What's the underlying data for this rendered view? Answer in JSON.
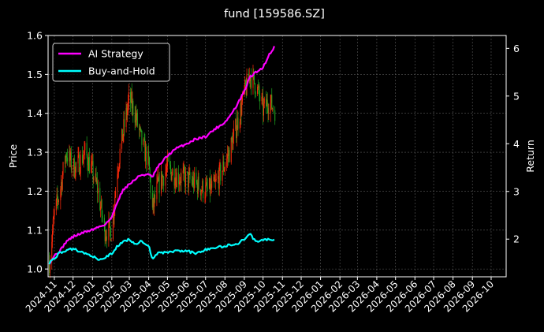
{
  "chart_data": {
    "type": "line",
    "title": "fund [159586.SZ]",
    "xlabel": "",
    "ylabel": "Price",
    "y2label": "Return",
    "grid": true,
    "legend_position": "top-left",
    "colors": {
      "background": "#000000",
      "text": "#ffffff",
      "grid": "#5a5a5a",
      "candle_up": "#ff2a0a",
      "candle_down": "#1fa81f",
      "ai_strategy": "#ff00ff",
      "buy_and_hold": "#00ffff"
    },
    "x_axis": {
      "range": [
        "2024-10-22",
        "2026-10-25"
      ],
      "tick_labels": [
        "2024-11",
        "2024-12",
        "2025-01",
        "2025-02",
        "2025-03",
        "2025-04",
        "2025-05",
        "2025-06",
        "2025-07",
        "2025-08",
        "2025-09",
        "2025-10",
        "2025-11",
        "2025-12",
        "2026-01",
        "2026-02",
        "2026-03",
        "2026-04",
        "2026-05",
        "2026-06",
        "2026-07",
        "2026-08",
        "2026-09",
        "2026-10"
      ]
    },
    "y_axis": {
      "range": [
        0.98,
        1.6
      ],
      "ticks": [
        1.0,
        1.1,
        1.2,
        1.3,
        1.4,
        1.5,
        1.6
      ],
      "tick_labels": [
        "1.0",
        "1.1",
        "1.2",
        "1.3",
        "1.4",
        "1.5",
        "1.6"
      ]
    },
    "y2_axis": {
      "range": [
        1.21,
        6.27
      ],
      "ticks": [
        2,
        3,
        4,
        5,
        6
      ],
      "tick_labels": [
        "2",
        "3",
        "4",
        "5",
        "6"
      ]
    },
    "candlestick_price": {
      "dates": [
        "2024-10-24",
        "2024-11-01",
        "2024-11-10",
        "2024-11-20",
        "2024-12-01",
        "2024-12-10",
        "2024-12-20",
        "2025-01-01",
        "2025-01-10",
        "2025-01-20",
        "2025-02-01",
        "2025-02-10",
        "2025-02-20",
        "2025-03-01",
        "2025-03-10",
        "2025-03-20",
        "2025-04-01",
        "2025-04-07",
        "2025-04-15",
        "2025-05-01",
        "2025-05-15",
        "2025-06-01",
        "2025-06-15",
        "2025-07-01",
        "2025-07-15",
        "2025-08-01",
        "2025-08-10",
        "2025-08-20",
        "2025-09-01",
        "2025-09-10",
        "2025-09-20",
        "2025-10-01",
        "2025-10-10",
        "2025-10-20"
      ],
      "values": [
        1.02,
        1.14,
        1.2,
        1.3,
        1.26,
        1.27,
        1.3,
        1.25,
        1.2,
        1.1,
        1.1,
        1.26,
        1.36,
        1.44,
        1.4,
        1.33,
        1.27,
        1.15,
        1.21,
        1.26,
        1.24,
        1.23,
        1.22,
        1.2,
        1.21,
        1.27,
        1.31,
        1.37,
        1.45,
        1.5,
        1.47,
        1.41,
        1.43,
        1.41
      ]
    },
    "series": [
      {
        "name": "AI Strategy",
        "axis": "right",
        "dates": [
          "2024-10-24",
          "2024-11-01",
          "2024-11-10",
          "2024-11-20",
          "2024-12-01",
          "2024-12-10",
          "2024-12-20",
          "2025-01-01",
          "2025-01-10",
          "2025-01-20",
          "2025-02-01",
          "2025-02-10",
          "2025-02-20",
          "2025-03-01",
          "2025-03-10",
          "2025-03-20",
          "2025-04-01",
          "2025-04-07",
          "2025-04-15",
          "2025-05-01",
          "2025-05-15",
          "2025-06-01",
          "2025-06-15",
          "2025-07-01",
          "2025-07-15",
          "2025-08-01",
          "2025-08-10",
          "2025-08-20",
          "2025-09-01",
          "2025-09-10",
          "2025-09-20",
          "2025-10-01",
          "2025-10-10",
          "2025-10-20"
        ],
        "values": [
          1.5,
          1.65,
          1.75,
          1.95,
          2.05,
          2.1,
          2.15,
          2.2,
          2.25,
          2.3,
          2.45,
          2.8,
          3.05,
          3.15,
          3.25,
          3.35,
          3.35,
          3.3,
          3.5,
          3.75,
          3.9,
          4.0,
          4.1,
          4.15,
          4.3,
          4.45,
          4.6,
          4.8,
          5.1,
          5.4,
          5.5,
          5.6,
          5.85,
          6.05
        ]
      },
      {
        "name": "Buy-and-Hold",
        "axis": "right",
        "dates": [
          "2024-10-24",
          "2024-11-01",
          "2024-11-10",
          "2024-11-20",
          "2024-12-01",
          "2024-12-10",
          "2024-12-20",
          "2025-01-01",
          "2025-01-10",
          "2025-01-20",
          "2025-02-01",
          "2025-02-10",
          "2025-02-20",
          "2025-03-01",
          "2025-03-10",
          "2025-03-20",
          "2025-04-01",
          "2025-04-07",
          "2025-04-15",
          "2025-05-01",
          "2025-05-15",
          "2025-06-01",
          "2025-06-15",
          "2025-07-01",
          "2025-07-15",
          "2025-08-01",
          "2025-08-10",
          "2025-08-20",
          "2025-09-01",
          "2025-09-10",
          "2025-09-20",
          "2025-10-01",
          "2025-10-10",
          "2025-10-20"
        ],
        "values": [
          1.5,
          1.6,
          1.72,
          1.75,
          1.8,
          1.75,
          1.7,
          1.65,
          1.55,
          1.6,
          1.7,
          1.85,
          1.95,
          2.0,
          1.9,
          1.95,
          1.85,
          1.6,
          1.7,
          1.72,
          1.75,
          1.75,
          1.7,
          1.78,
          1.82,
          1.85,
          1.88,
          1.9,
          2.0,
          2.1,
          1.95,
          1.98,
          2.0,
          1.98
        ]
      }
    ]
  }
}
